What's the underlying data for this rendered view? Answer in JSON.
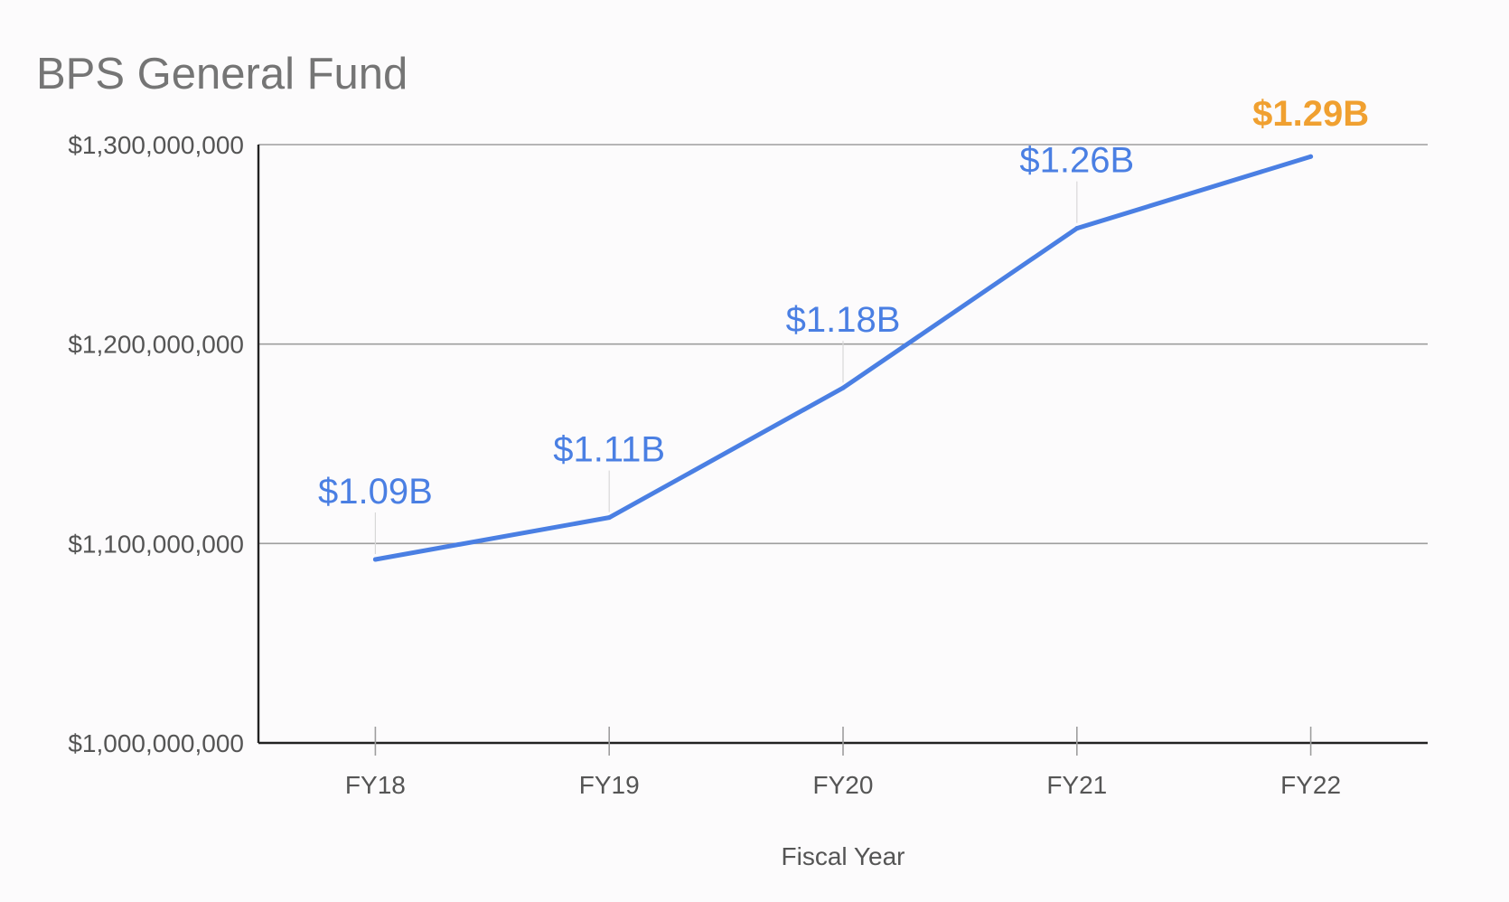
{
  "chart_data": {
    "type": "line",
    "title": "BPS General Fund",
    "xlabel": "Fiscal Year",
    "ylabel": "",
    "categories": [
      "FY18",
      "FY19",
      "FY20",
      "FY21",
      "FY22"
    ],
    "series": [
      {
        "values": [
          1092000000,
          1113000000,
          1178000000,
          1258000000,
          1294000000
        ],
        "data_labels": [
          "$1.09B",
          "$1.11B",
          "$1.18B",
          "$1.26B",
          "$1.29B"
        ],
        "color": "#4a7fe3"
      }
    ],
    "highlight": {
      "index": 4,
      "color": "#f0a030"
    },
    "ylim": [
      1000000000,
      1300000000
    ],
    "yticks": [
      1000000000,
      1100000000,
      1200000000,
      1300000000
    ],
    "ytick_labels": [
      "$1,000,000,000",
      "$1,100,000,000",
      "$1,200,000,000",
      "$1,300,000,000"
    ],
    "grid": true,
    "legend": "none"
  }
}
